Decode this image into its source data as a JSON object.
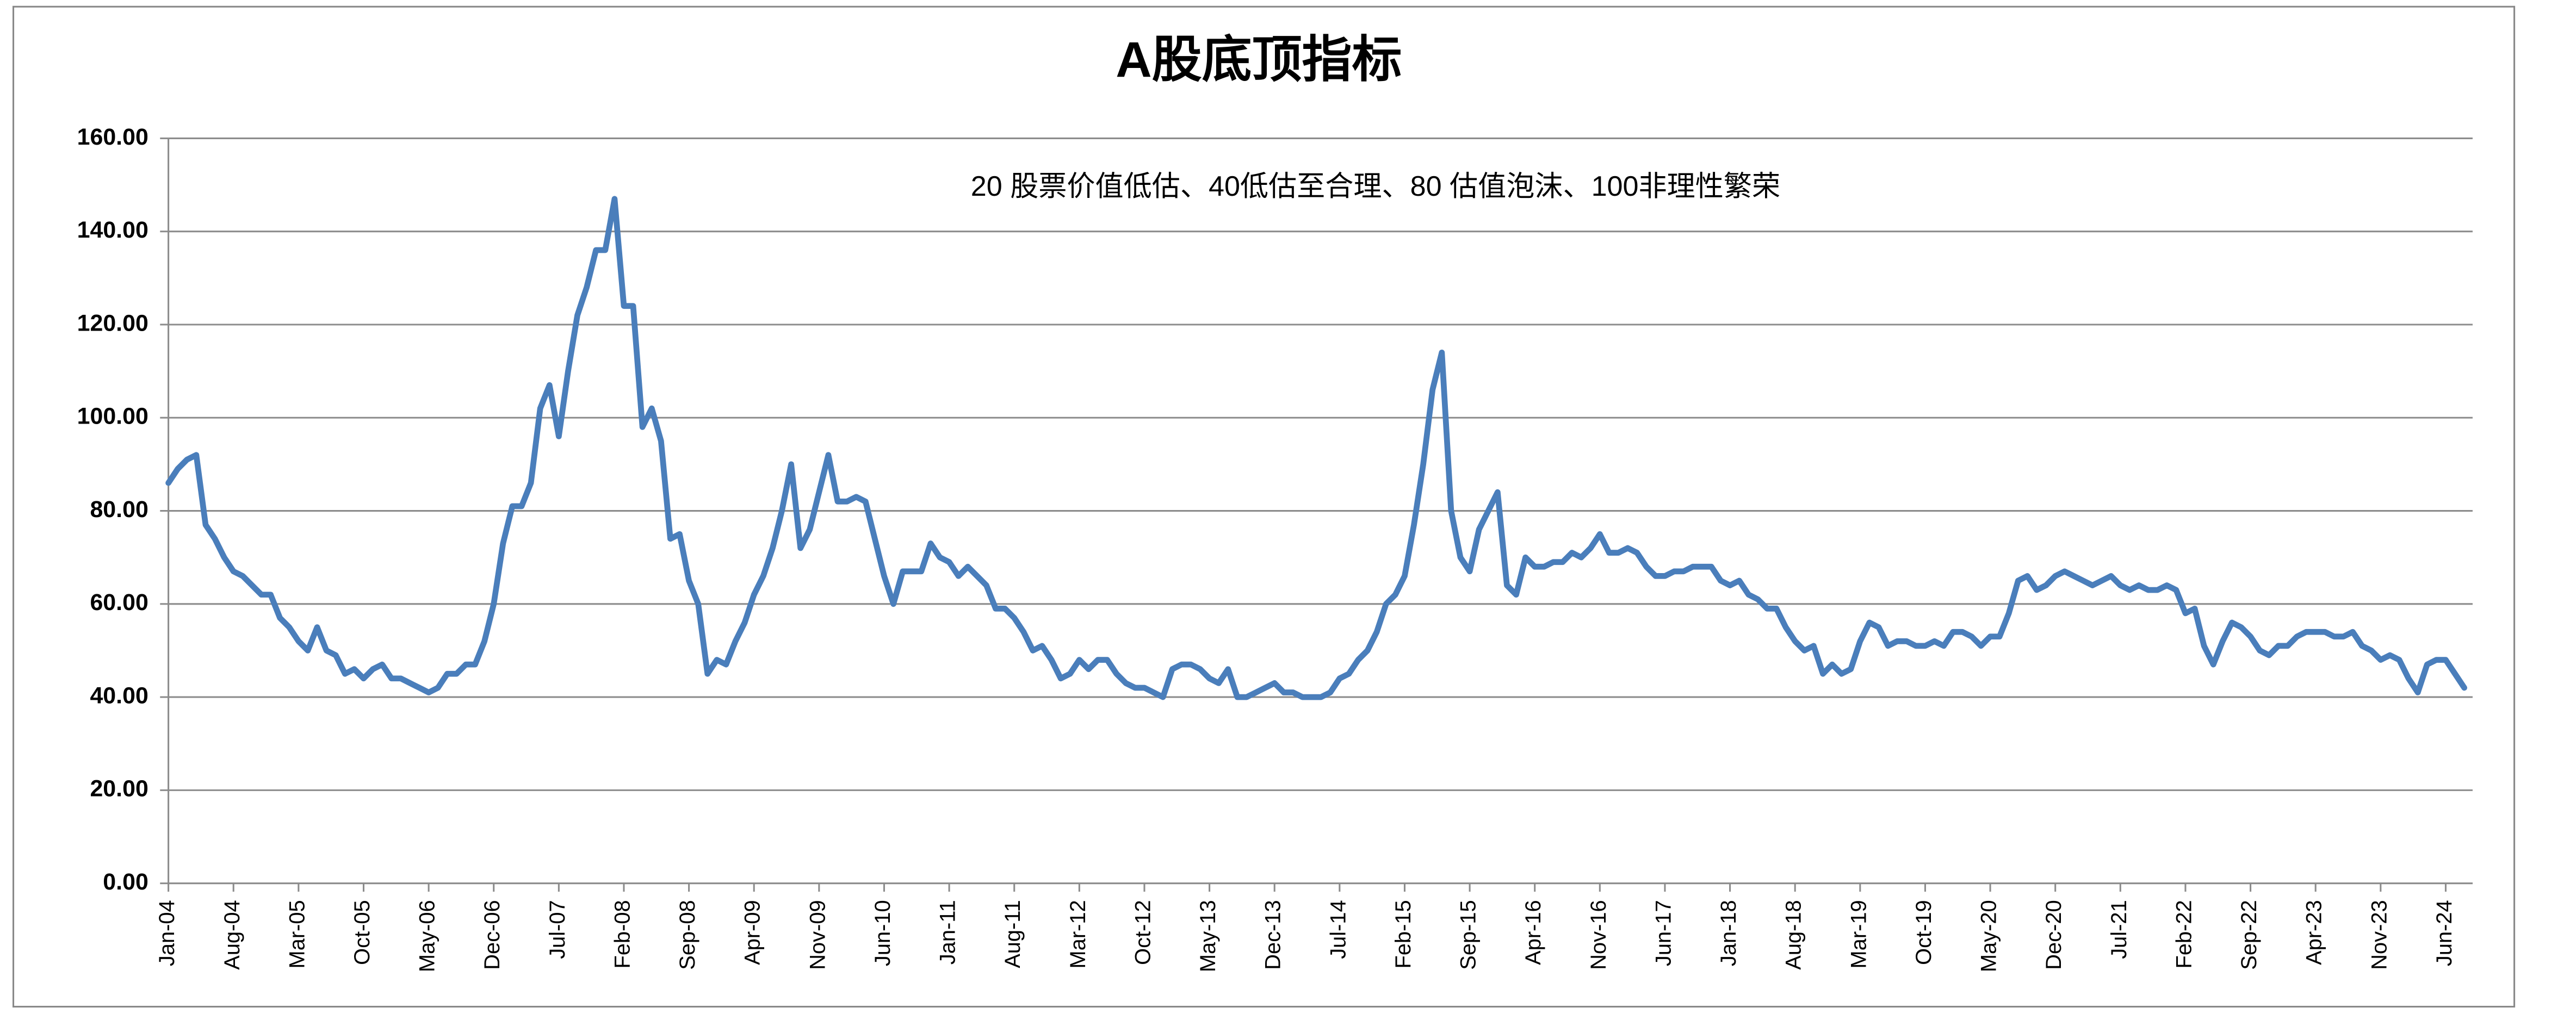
{
  "chart_data": {
    "type": "line",
    "title": "A股底顶指标",
    "annotation": "20 股票价值低估、40低估至合理、80 估值泡沫、100非理性繁荣",
    "color": "#4a7ebb",
    "grid": true,
    "ylim": [
      0,
      160
    ],
    "yticks": [
      {
        "value": 0,
        "label": "0.00"
      },
      {
        "value": 20,
        "label": "20.00"
      },
      {
        "value": 40,
        "label": "40.00"
      },
      {
        "value": 60,
        "label": "60.00"
      },
      {
        "value": 80,
        "label": "80.00"
      },
      {
        "value": 100,
        "label": "100.00"
      },
      {
        "value": 120,
        "label": "120.00"
      },
      {
        "value": 140,
        "label": "140.00"
      },
      {
        "value": 160,
        "label": "160.00"
      }
    ],
    "categories": [
      "Jan-04",
      null,
      null,
      null,
      null,
      null,
      null,
      "Aug-04",
      null,
      null,
      null,
      null,
      null,
      null,
      "Mar-05",
      null,
      null,
      null,
      null,
      null,
      null,
      "Oct-05",
      null,
      null,
      null,
      null,
      null,
      null,
      "May-06",
      null,
      null,
      null,
      null,
      null,
      null,
      "Dec-06",
      null,
      null,
      null,
      null,
      null,
      null,
      "Jul-07",
      null,
      null,
      null,
      null,
      null,
      null,
      "Feb-08",
      null,
      null,
      null,
      null,
      null,
      null,
      "Sep-08",
      null,
      null,
      null,
      null,
      null,
      null,
      "Apr-09",
      null,
      null,
      null,
      null,
      null,
      null,
      "Nov-09",
      null,
      null,
      null,
      null,
      null,
      null,
      "Jun-10",
      null,
      null,
      null,
      null,
      null,
      null,
      "Jan-11",
      null,
      null,
      null,
      null,
      null,
      null,
      "Aug-11",
      null,
      null,
      null,
      null,
      null,
      null,
      "Mar-12",
      null,
      null,
      null,
      null,
      null,
      null,
      "Oct-12",
      null,
      null,
      null,
      null,
      null,
      null,
      "May-13",
      null,
      null,
      null,
      null,
      null,
      null,
      "Dec-13",
      null,
      null,
      null,
      null,
      null,
      null,
      "Jul-14",
      null,
      null,
      null,
      null,
      null,
      null,
      "Feb-15",
      null,
      null,
      null,
      null,
      null,
      null,
      "Sep-15",
      null,
      null,
      null,
      null,
      null,
      null,
      "Apr-16",
      null,
      null,
      null,
      null,
      null,
      null,
      "Nov-16",
      null,
      null,
      null,
      null,
      null,
      null,
      "Jun-17",
      null,
      null,
      null,
      null,
      null,
      null,
      "Jan-18",
      null,
      null,
      null,
      null,
      null,
      null,
      "Aug-18",
      null,
      null,
      null,
      null,
      null,
      null,
      "Mar-19",
      null,
      null,
      null,
      null,
      null,
      null,
      "Oct-19",
      null,
      null,
      null,
      null,
      null,
      null,
      "May-20",
      null,
      null,
      null,
      null,
      null,
      null,
      "Dec-20",
      null,
      null,
      null,
      null,
      null,
      null,
      "Jul-21",
      null,
      null,
      null,
      null,
      null,
      null,
      "Feb-22",
      null,
      null,
      null,
      null,
      null,
      null,
      "Sep-22",
      null,
      null,
      null,
      null,
      null,
      null,
      "Apr-23",
      null,
      null,
      null,
      null,
      null,
      null,
      "Nov-23",
      null,
      null,
      null,
      null,
      null,
      null,
      "Jun-24",
      null,
      null
    ],
    "values": [
      86,
      89,
      91,
      92,
      77,
      74,
      70,
      67,
      66,
      64,
      62,
      62,
      57,
      55,
      52,
      50,
      55,
      50,
      49,
      45,
      46,
      44,
      46,
      47,
      44,
      44,
      43,
      42,
      41,
      42,
      45,
      45,
      47,
      47,
      52,
      60,
      73,
      81,
      81,
      86,
      102,
      107,
      96,
      110,
      122,
      128,
      136,
      136,
      147,
      124,
      124,
      98,
      102,
      95,
      74,
      75,
      65,
      60,
      45,
      48,
      47,
      52,
      56,
      62,
      66,
      72,
      80,
      90,
      72,
      76,
      84,
      92,
      82,
      82,
      83,
      82,
      74,
      66,
      60,
      67,
      67,
      67,
      73,
      70,
      69,
      66,
      68,
      66,
      64,
      59,
      59,
      57,
      54,
      50,
      51,
      48,
      44,
      45,
      48,
      46,
      48,
      48,
      45,
      43,
      42,
      42,
      41,
      40,
      46,
      47,
      47,
      46,
      44,
      43,
      46,
      40,
      40,
      41,
      42,
      43,
      41,
      41,
      40,
      40,
      40,
      41,
      44,
      45,
      48,
      50,
      54,
      60,
      62,
      66,
      77,
      90,
      106,
      114,
      80,
      70,
      67,
      76,
      80,
      84,
      64,
      62,
      70,
      68,
      68,
      69,
      69,
      71,
      70,
      72,
      75,
      71,
      71,
      72,
      71,
      68,
      66,
      66,
      67,
      67,
      68,
      68,
      68,
      65,
      64,
      65,
      62,
      61,
      59,
      59,
      55,
      52,
      50,
      51,
      45,
      47,
      45,
      46,
      52,
      56,
      55,
      51,
      52,
      52,
      51,
      51,
      52,
      51,
      54,
      54,
      53,
      51,
      53,
      53,
      58,
      65,
      66,
      63,
      64,
      66,
      67,
      66,
      65,
      64,
      65,
      66,
      64,
      63,
      64,
      63,
      63,
      64,
      63,
      58,
      59,
      51,
      47,
      52,
      56,
      55,
      53,
      50,
      49,
      51,
      51,
      53,
      54,
      54,
      54,
      53,
      53,
      54,
      51,
      50,
      48,
      49,
      48,
      44,
      41,
      47,
      48,
      48,
      45,
      42
    ]
  }
}
